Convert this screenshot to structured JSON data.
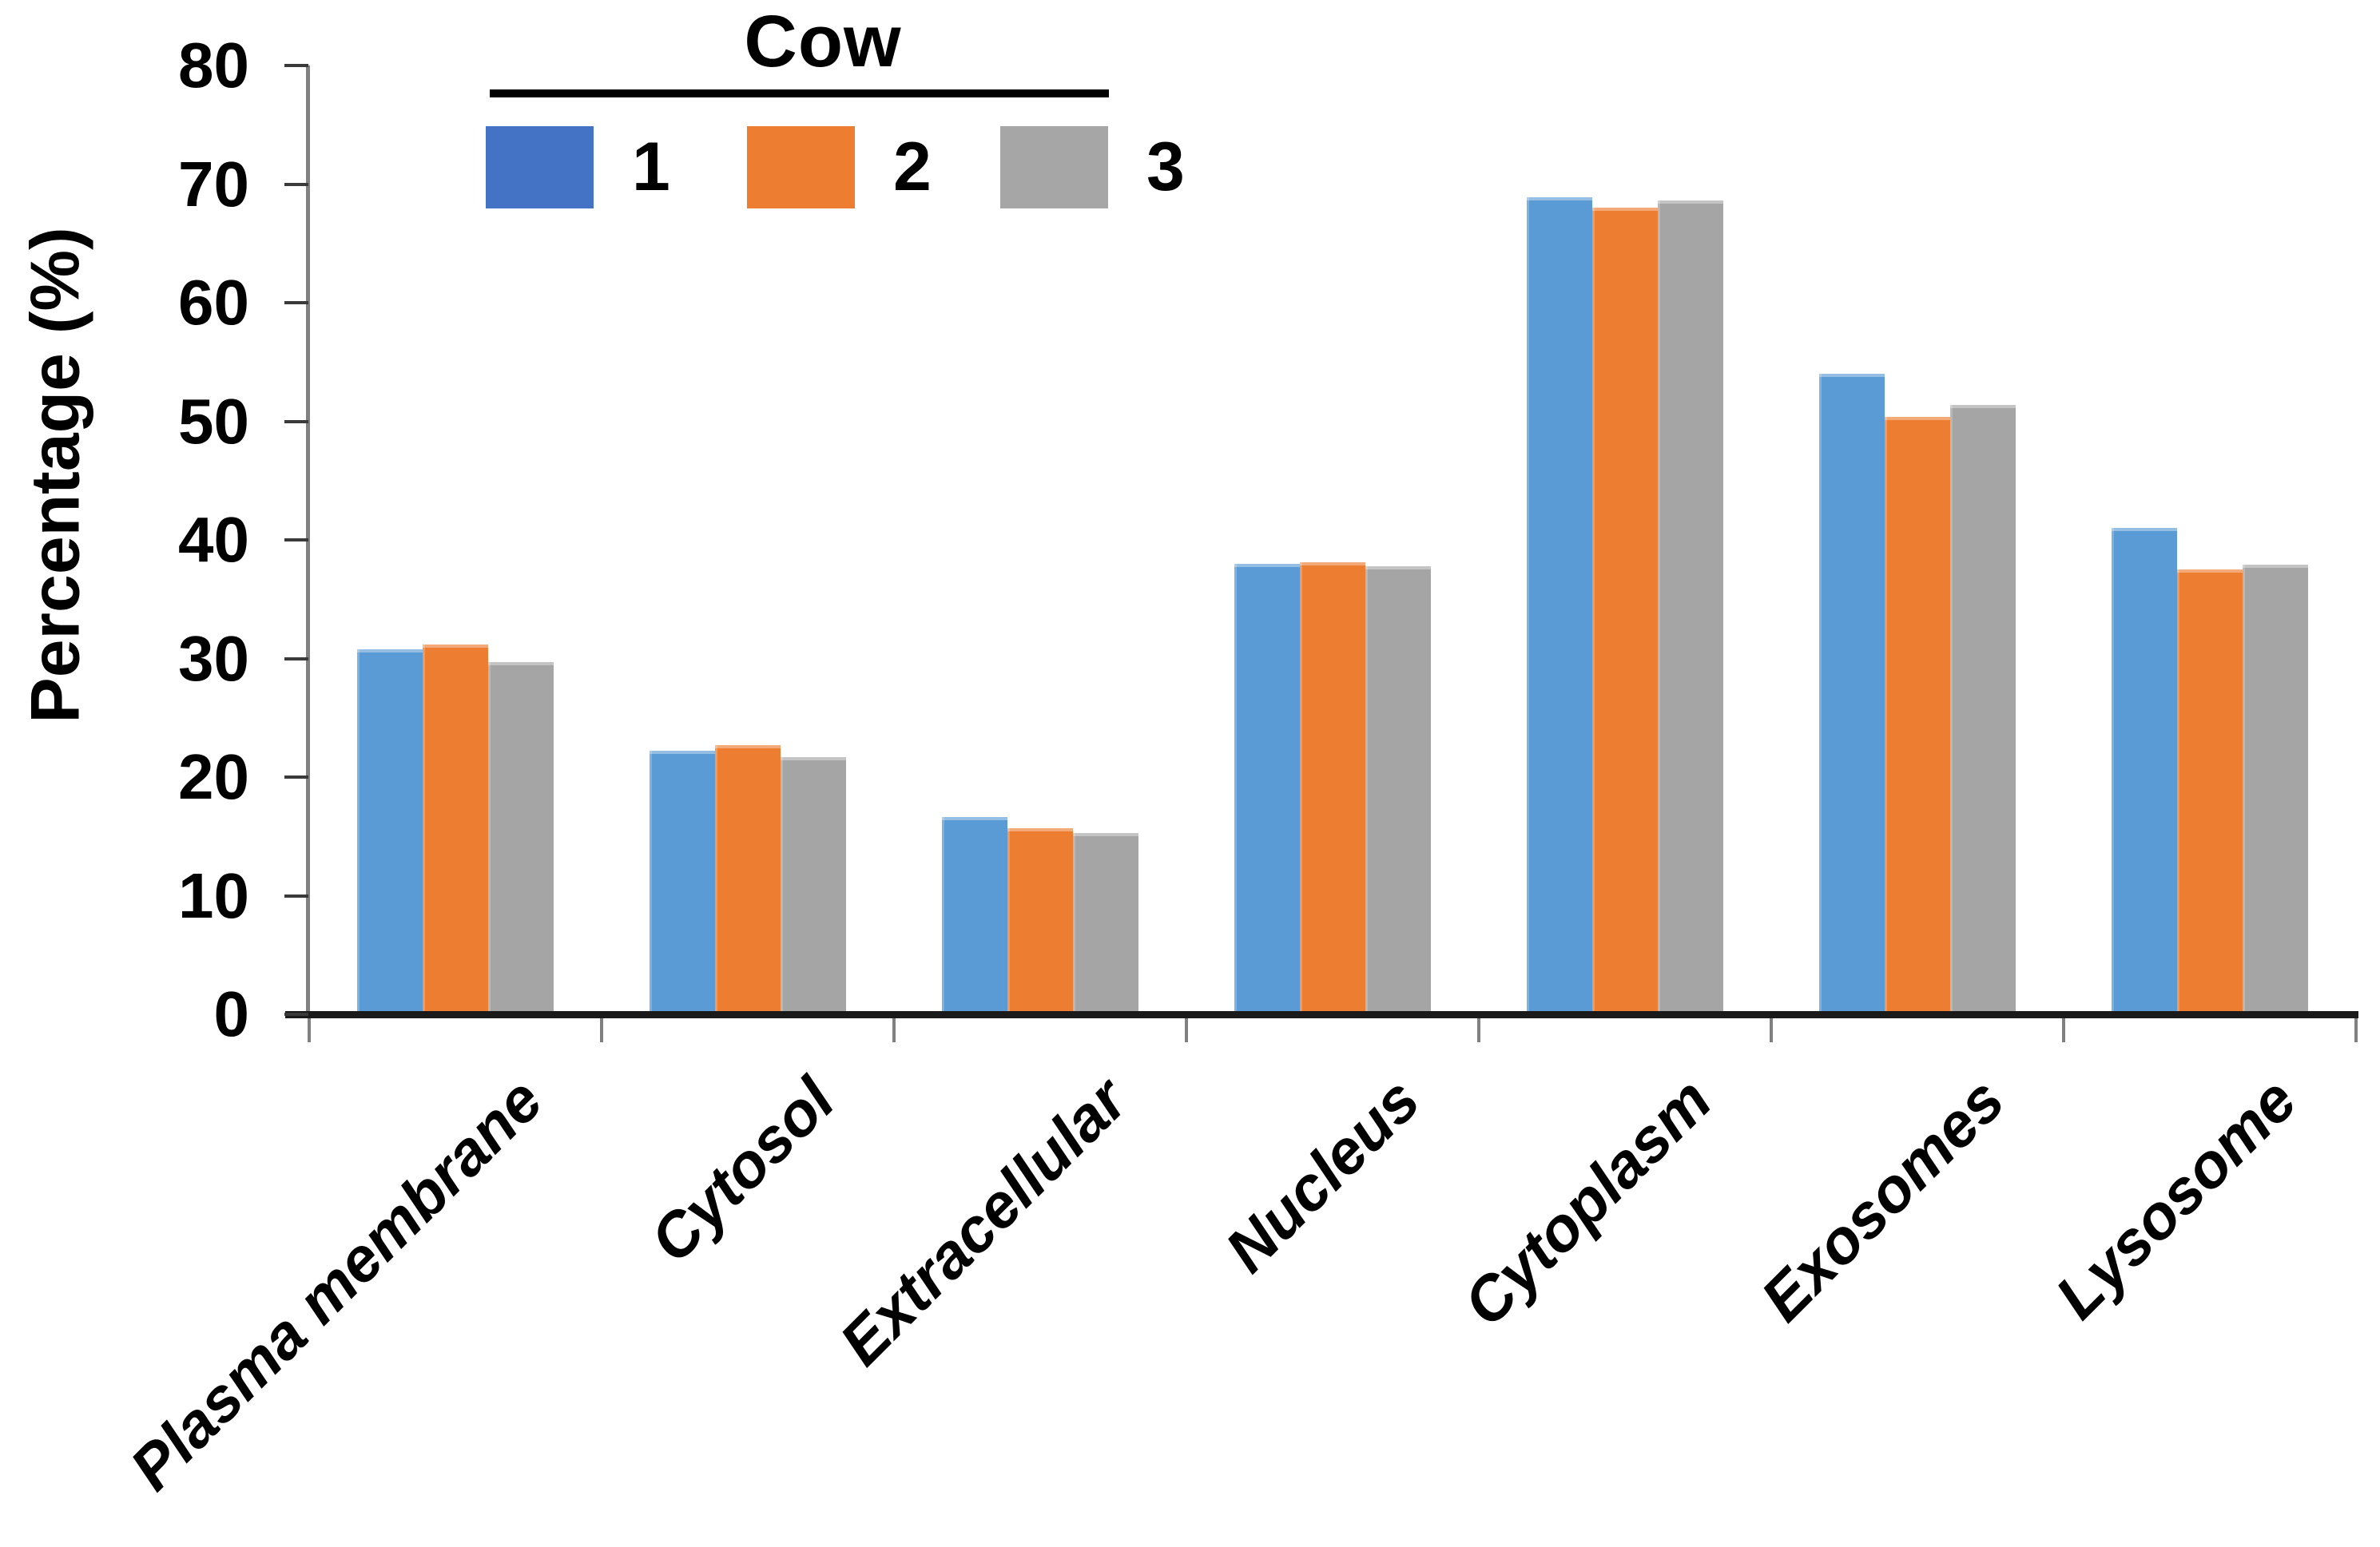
{
  "figure": {
    "background": "#ffffff"
  },
  "legend": {
    "title": "Cow",
    "position": "top",
    "entries": [
      {
        "label": "1",
        "swatch_color": "#4472C4"
      },
      {
        "label": "2",
        "swatch_color": "#ED7D31"
      },
      {
        "label": "3",
        "swatch_color": "#A6A6A6"
      }
    ]
  },
  "y_axis": {
    "title": "Percentage (%)",
    "tick_labels": [
      "0",
      "10",
      "20",
      "30",
      "40",
      "50",
      "60",
      "70",
      "80"
    ],
    "min": 0,
    "max": 80,
    "step": 10
  },
  "chart_data": {
    "type": "bar",
    "title": "Cow",
    "categories": [
      "Plasma membrane",
      "Cytosol",
      "Extracellular",
      "Nucleus",
      "Cytoplasm",
      "Exosomes",
      "Lysosome"
    ],
    "series": [
      {
        "name": "1",
        "color": "#5B9BD5",
        "values": [
          30.8,
          22.2,
          16.6,
          38.0,
          68.9,
          54.0,
          41.0
        ]
      },
      {
        "name": "2",
        "color": "#ED7D31",
        "values": [
          31.2,
          22.7,
          15.7,
          38.1,
          68.0,
          50.4,
          37.5
        ]
      },
      {
        "name": "3",
        "color": "#A5A5A5",
        "values": [
          29.7,
          21.7,
          15.3,
          37.8,
          68.6,
          51.4,
          37.9
        ]
      }
    ],
    "xlabel": "",
    "ylabel": "Percentage (%)",
    "ylim": [
      0,
      80
    ],
    "grid": false,
    "legend_position": "top",
    "category_label_rotation_deg": -45
  }
}
